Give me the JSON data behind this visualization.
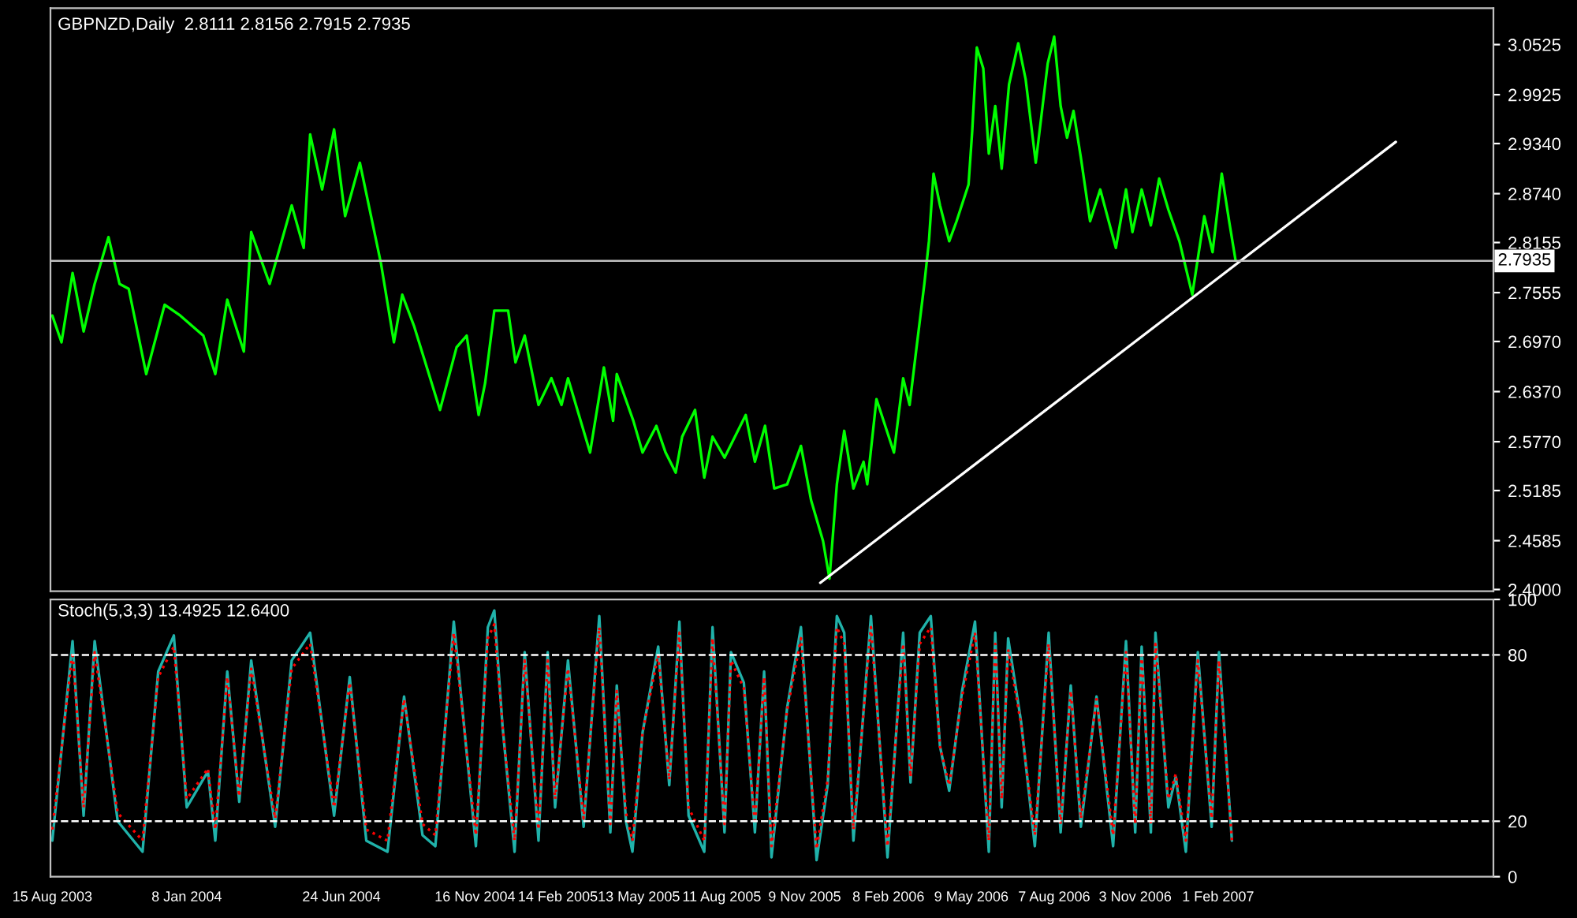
{
  "chart_data": [
    {
      "type": "line",
      "title": "GBPNZD,Daily  2.8111 2.8156 2.7915 2.7935",
      "xlim": [
        "2003-08-13",
        "2007-11-27"
      ],
      "ylim": [
        2.398,
        3.096
      ],
      "yticks": [
        3.0525,
        2.9925,
        {
          "value": 2.934,
          "label": "2.9340"
        },
        {
          "value": 2.874,
          "label": "2.8740"
        },
        2.8155,
        2.7555,
        {
          "value": 2.697,
          "label": "2.6970"
        },
        {
          "value": 2.637,
          "label": "2.6370"
        },
        {
          "value": 2.577,
          "label": "2.5770"
        },
        2.5185,
        2.4585,
        {
          "value": 2.4,
          "label": "2.4000"
        }
      ],
      "tick_labels": "y",
      "marker": "none",
      "ref_lines": [
        {
          "axis": "y",
          "value": 2.7935,
          "label": "2.7935",
          "color": "#c0c0c0",
          "line_style": "solid"
        }
      ],
      "series": [
        {
          "color": "#00ff00",
          "x": [
            "2003-08-15",
            "2003-08-25",
            "2003-09-06",
            "2003-09-18",
            "2003-09-30",
            "2003-10-15",
            "2003-10-27",
            "2003-11-06",
            "2003-11-25",
            "2003-12-15",
            "2004-01-01",
            "2004-01-26",
            "2004-02-08",
            "2004-02-21",
            "2004-03-10",
            "2004-03-18",
            "2004-04-07",
            "2004-05-01",
            "2004-05-14",
            "2004-05-21",
            "2004-06-03",
            "2004-06-16",
            "2004-06-28",
            "2004-07-14",
            "2004-08-06",
            "2004-08-20",
            "2004-08-29",
            "2004-09-11",
            "2004-10-09",
            "2004-10-27",
            "2004-11-07",
            "2004-11-20",
            "2004-11-27",
            "2004-12-07",
            "2004-12-22",
            "2004-12-30",
            "2005-01-09",
            "2005-01-24",
            "2005-02-07",
            "2005-02-18",
            "2005-02-25",
            "2005-03-21",
            "2005-04-05",
            "2005-04-15",
            "2005-04-19",
            "2005-05-07",
            "2005-05-17",
            "2005-06-01",
            "2005-06-11",
            "2005-06-22",
            "2005-06-29",
            "2005-07-13",
            "2005-07-23",
            "2005-08-01",
            "2005-08-14",
            "2005-09-06",
            "2005-09-16",
            "2005-09-27",
            "2005-10-07",
            "2005-10-21",
            "2005-11-05",
            "2005-11-16",
            "2005-11-29",
            "2005-12-06",
            "2005-12-14",
            "2005-12-22",
            "2006-01-01",
            "2006-01-12",
            "2006-01-16",
            "2006-01-26",
            "2006-02-14",
            "2006-02-24",
            "2006-03-03",
            "2006-03-10",
            "2006-03-19",
            "2006-03-24",
            "2006-03-29",
            "2006-04-05",
            "2006-04-15",
            "2006-04-23",
            "2006-05-06",
            "2006-05-10",
            "2006-05-15",
            "2006-05-22",
            "2006-05-28",
            "2006-06-04",
            "2006-06-11",
            "2006-06-19",
            "2006-06-29",
            "2006-07-07",
            "2006-07-18",
            "2006-07-31",
            "2006-08-07",
            "2006-08-14",
            "2006-08-21",
            "2006-08-28",
            "2006-09-05",
            "2006-09-15",
            "2006-09-26",
            "2006-10-13",
            "2006-10-24",
            "2006-10-31",
            "2006-11-10",
            "2006-11-20",
            "2006-11-29",
            "2006-12-09",
            "2006-12-21",
            "2007-01-04",
            "2007-01-17",
            "2007-01-26",
            "2007-02-05",
            "2007-02-13",
            "2007-02-20"
          ],
          "values": [
            2.728,
            2.696,
            2.779,
            2.709,
            2.766,
            2.822,
            2.766,
            2.76,
            2.658,
            2.741,
            2.728,
            2.704,
            2.658,
            2.747,
            2.685,
            2.828,
            2.766,
            2.86,
            2.809,
            2.945,
            2.879,
            2.951,
            2.847,
            2.911,
            2.79,
            2.696,
            2.753,
            2.715,
            2.615,
            2.69,
            2.704,
            2.609,
            2.647,
            2.734,
            2.734,
            2.672,
            2.704,
            2.621,
            2.653,
            2.621,
            2.653,
            2.564,
            2.666,
            2.602,
            2.658,
            2.602,
            2.564,
            2.596,
            2.564,
            2.54,
            2.583,
            2.615,
            2.534,
            2.583,
            2.558,
            2.609,
            2.553,
            2.596,
            2.521,
            2.526,
            2.572,
            2.507,
            2.458,
            2.413,
            2.526,
            2.59,
            2.521,
            2.553,
            2.526,
            2.628,
            2.564,
            2.653,
            2.621,
            2.685,
            2.766,
            2.817,
            2.898,
            2.86,
            2.817,
            2.841,
            2.885,
            2.949,
            3.049,
            3.024,
            2.922,
            2.979,
            2.904,
            3.005,
            3.054,
            3.011,
            2.911,
            3.03,
            3.062,
            2.979,
            2.941,
            2.973,
            2.917,
            2.841,
            2.879,
            2.809,
            2.879,
            2.828,
            2.879,
            2.836,
            2.892,
            2.855,
            2.817,
            2.753,
            2.847,
            2.804,
            2.898,
            2.841,
            2.794
          ]
        },
        {
          "type": "line",
          "color": "#ffffff",
          "x": [
            "2005-11-26",
            "2007-08-13"
          ],
          "values": [
            2.408,
            2.936
          ]
        }
      ]
    },
    {
      "type": "line",
      "title": "Stoch(5,3,3) 13.4925 12.6400",
      "xlim": [
        "2003-08-13",
        "2007-11-27"
      ],
      "ylim": [
        0,
        100
      ],
      "yticks": [
        0,
        20,
        80,
        100
      ],
      "xticks": [
        {
          "value": "2003-08-15",
          "label": "15 Aug 2003"
        },
        {
          "value": "2004-01-08",
          "label": "8 Jan 2004"
        },
        {
          "value": "2004-06-24",
          "label": "24 Jun 2004"
        },
        {
          "value": "2004-11-16",
          "label": "16 Nov 2004"
        },
        {
          "value": "2005-02-14",
          "label": "14 Feb 2005"
        },
        {
          "value": "2005-05-13",
          "label": "13 May 2005"
        },
        {
          "value": "2005-08-11",
          "label": "11 Aug 2005"
        },
        {
          "value": "2005-11-09",
          "label": "9 Nov 2005"
        },
        {
          "value": "2006-02-08",
          "label": "8 Feb 2006"
        },
        {
          "value": "2006-05-09",
          "label": "9 May 2006"
        },
        {
          "value": "2006-08-07",
          "label": "7 Aug 2006"
        },
        {
          "value": "2006-11-03",
          "label": "3 Nov 2006"
        },
        {
          "value": "2007-02-01",
          "label": "1 Feb 2007"
        }
      ],
      "marker": "none",
      "ref_lines": [
        {
          "axis": "y",
          "value": 20,
          "color": "#ffffff",
          "line_style": "dashed"
        },
        {
          "axis": "y",
          "value": 80,
          "color": "#ffffff",
          "line_style": "dashed"
        }
      ],
      "series": [
        {
          "color": "#20b2aa",
          "line_style": "solid",
          "x": [
            "2003-08-15",
            "2003-09-06",
            "2003-09-18",
            "2003-09-30",
            "2003-10-25",
            "2003-11-21",
            "2003-12-08",
            "2003-12-25",
            "2004-01-08",
            "2004-01-31",
            "2004-02-08",
            "2004-02-21",
            "2004-03-05",
            "2004-03-18",
            "2004-04-13",
            "2004-05-01",
            "2004-05-21",
            "2004-06-16",
            "2004-07-03",
            "2004-07-21",
            "2004-08-13",
            "2004-08-31",
            "2004-09-20",
            "2004-10-04",
            "2004-10-24",
            "2004-11-17",
            "2004-11-30",
            "2004-12-07",
            "2004-12-16",
            "2004-12-29",
            "2005-01-09",
            "2005-01-24",
            "2005-02-03",
            "2005-02-11",
            "2005-02-25",
            "2005-03-14",
            "2005-03-31",
            "2005-04-12",
            "2005-04-19",
            "2005-04-29",
            "2005-05-06",
            "2005-05-17",
            "2005-06-03",
            "2005-06-15",
            "2005-06-26",
            "2005-07-06",
            "2005-07-23",
            "2005-08-01",
            "2005-08-14",
            "2005-08-21",
            "2005-09-04",
            "2005-09-16",
            "2005-09-26",
            "2005-10-04",
            "2005-10-21",
            "2005-11-05",
            "2005-11-22",
            "2005-12-04",
            "2005-12-14",
            "2005-12-22",
            "2006-01-01",
            "2006-01-20",
            "2006-02-07",
            "2006-02-24",
            "2006-03-04",
            "2006-03-14",
            "2006-03-26",
            "2006-04-05",
            "2006-04-15",
            "2006-04-29",
            "2006-05-13",
            "2006-05-28",
            "2006-06-04",
            "2006-06-11",
            "2006-06-18",
            "2006-07-02",
            "2006-07-17",
            "2006-08-01",
            "2006-08-14",
            "2006-08-25",
            "2006-09-05",
            "2006-09-22",
            "2006-10-10",
            "2006-10-24",
            "2006-11-03",
            "2006-11-10",
            "2006-11-20",
            "2006-11-25",
            "2006-12-09",
            "2006-12-17",
            "2006-12-28",
            "2007-01-10",
            "2007-01-25",
            "2007-02-02",
            "2007-02-16"
          ],
          "values": [
            13,
            85,
            22,
            85,
            20,
            9,
            74,
            87,
            25,
            38,
            13,
            74,
            27,
            78,
            18,
            78,
            88,
            22,
            72,
            13,
            9,
            65,
            15,
            11,
            92,
            11,
            90,
            96,
            54,
            9,
            81,
            13,
            81,
            25,
            78,
            18,
            94,
            16,
            69,
            20,
            9,
            52,
            83,
            33,
            92,
            22,
            9,
            90,
            16,
            81,
            70,
            16,
            74,
            7,
            61,
            90,
            6,
            33,
            94,
            88,
            13,
            94,
            7,
            88,
            34,
            88,
            94,
            47,
            31,
            67,
            92,
            9,
            88,
            25,
            86,
            56,
            11,
            88,
            16,
            69,
            18,
            65,
            11,
            85,
            16,
            83,
            16,
            88,
            25,
            36,
            9,
            81,
            18,
            81,
            13
          ]
        },
        {
          "color": "#ff0000",
          "line_style": "dotted",
          "x": [
            "2003-08-15",
            "2003-09-06",
            "2003-09-18",
            "2003-09-30",
            "2003-10-25",
            "2003-11-21",
            "2003-12-08",
            "2003-12-25",
            "2004-01-08",
            "2004-01-31",
            "2004-02-08",
            "2004-02-21",
            "2004-03-05",
            "2004-03-18",
            "2004-04-13",
            "2004-05-01",
            "2004-05-21",
            "2004-06-16",
            "2004-07-03",
            "2004-07-21",
            "2004-08-13",
            "2004-08-31",
            "2004-09-20",
            "2004-10-04",
            "2004-10-24",
            "2004-11-17",
            "2004-11-30",
            "2004-12-07",
            "2004-12-16",
            "2004-12-29",
            "2005-01-09",
            "2005-01-24",
            "2005-02-03",
            "2005-02-11",
            "2005-02-25",
            "2005-03-14",
            "2005-03-31",
            "2005-04-12",
            "2005-04-19",
            "2005-04-29",
            "2005-05-06",
            "2005-05-17",
            "2005-06-03",
            "2005-06-15",
            "2005-06-26",
            "2005-07-06",
            "2005-07-23",
            "2005-08-01",
            "2005-08-14",
            "2005-08-21",
            "2005-09-04",
            "2005-09-16",
            "2005-09-26",
            "2005-10-04",
            "2005-10-21",
            "2005-11-05",
            "2005-11-22",
            "2005-12-04",
            "2005-12-14",
            "2005-12-22",
            "2006-01-01",
            "2006-01-20",
            "2006-02-07",
            "2006-02-24",
            "2006-03-04",
            "2006-03-14",
            "2006-03-26",
            "2006-04-05",
            "2006-04-15",
            "2006-04-29",
            "2006-05-13",
            "2006-05-28",
            "2006-06-04",
            "2006-06-11",
            "2006-06-18",
            "2006-07-02",
            "2006-07-17",
            "2006-08-01",
            "2006-08-14",
            "2006-08-25",
            "2006-09-05",
            "2006-09-22",
            "2006-10-10",
            "2006-10-24",
            "2006-11-03",
            "2006-11-10",
            "2006-11-20",
            "2006-11-25",
            "2006-12-09",
            "2006-12-17",
            "2006-12-28",
            "2007-01-10",
            "2007-01-25",
            "2007-02-02",
            "2007-02-16"
          ],
          "values": [
            17,
            81,
            25,
            81,
            23,
            13,
            72,
            83,
            28,
            39,
            17,
            72,
            29,
            75,
            21,
            75,
            84,
            25,
            70,
            17,
            13,
            64,
            19,
            15,
            88,
            15,
            86,
            91,
            54,
            13,
            78,
            17,
            78,
            28,
            75,
            21,
            90,
            19,
            67,
            23,
            13,
            52,
            80,
            35,
            88,
            25,
            13,
            86,
            19,
            78,
            68,
            19,
            72,
            11,
            60,
            86,
            10,
            35,
            90,
            84,
            17,
            90,
            11,
            84,
            36,
            84,
            90,
            47,
            33,
            65,
            88,
            13,
            84,
            28,
            82,
            55,
            15,
            84,
            19,
            67,
            21,
            64,
            15,
            81,
            19,
            80,
            19,
            84,
            28,
            37,
            13,
            78,
            21,
            78,
            13
          ]
        }
      ]
    }
  ]
}
